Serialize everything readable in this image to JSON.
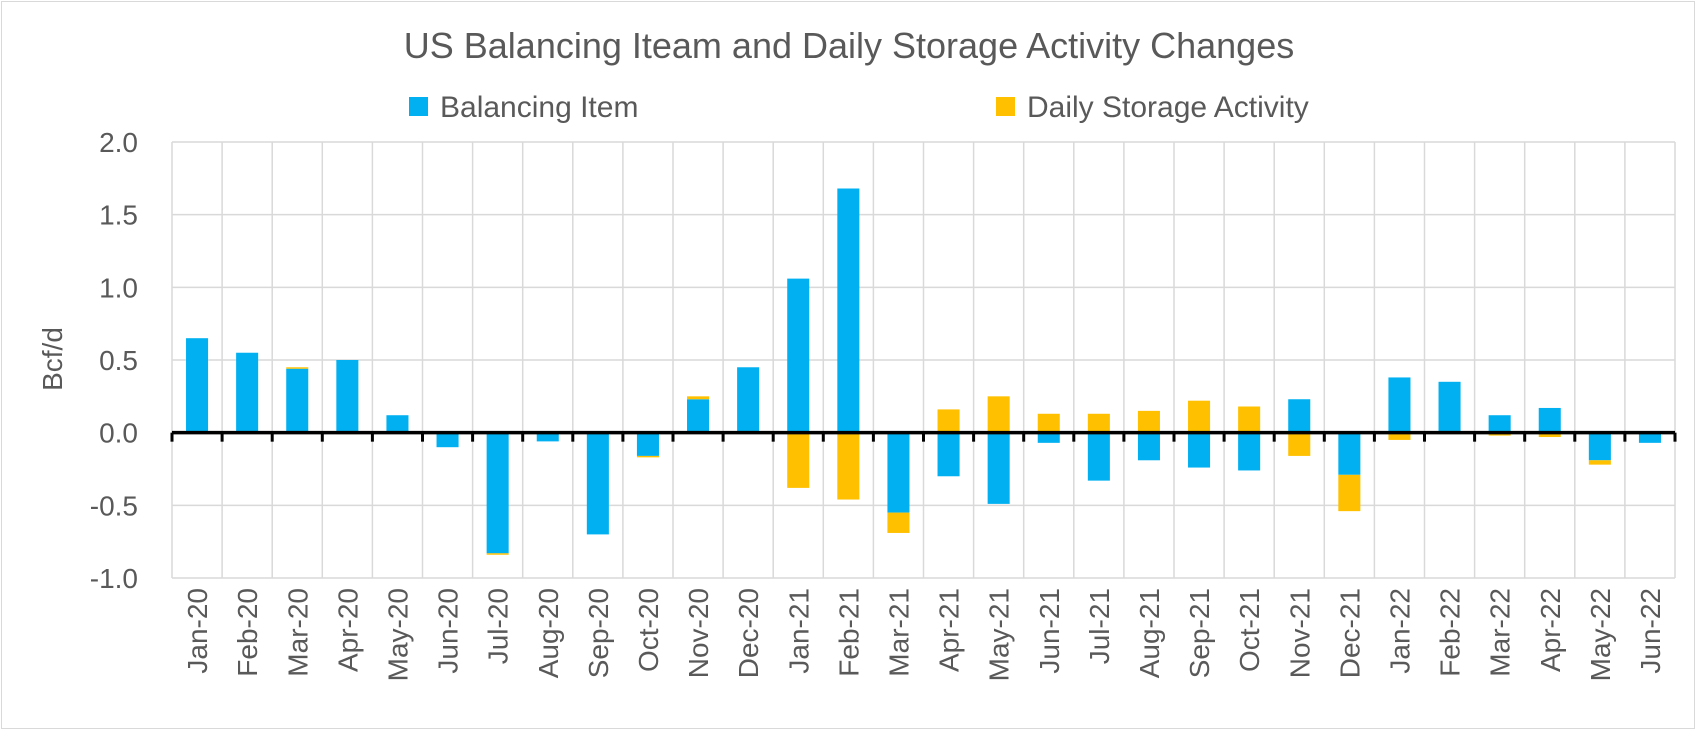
{
  "chart_data": {
    "type": "bar",
    "stacked": true,
    "title": "US Balancing Iteam and Daily Storage Activity Changes",
    "ylabel": "Bcf/d",
    "xlabel": "",
    "ylim": [
      -1.0,
      2.0
    ],
    "yticks": [
      "2.0",
      "1.5",
      "1.0",
      "0.5",
      "0.0",
      "-0.5",
      "-1.0"
    ],
    "ytick_values": [
      2.0,
      1.5,
      1.0,
      0.5,
      0.0,
      -0.5,
      -1.0
    ],
    "grid": true,
    "legend_position": "top",
    "categories": [
      "Jan-20",
      "Feb-20",
      "Mar-20",
      "Apr-20",
      "May-20",
      "Jun-20",
      "Jul-20",
      "Aug-20",
      "Sep-20",
      "Oct-20",
      "Nov-20",
      "Dec-20",
      "Jan-21",
      "Feb-21",
      "Mar-21",
      "Apr-21",
      "May-21",
      "Jun-21",
      "Jul-21",
      "Aug-21",
      "Sep-21",
      "Oct-21",
      "Nov-21",
      "Dec-21",
      "Jan-22",
      "Feb-22",
      "Mar-22",
      "Apr-22",
      "May-22",
      "Jun-22"
    ],
    "series": [
      {
        "name": "Balancing Item",
        "color": "#00b0f0",
        "values": [
          0.65,
          0.55,
          0.44,
          0.5,
          0.12,
          -0.1,
          -0.83,
          -0.06,
          -0.7,
          -0.16,
          0.23,
          0.45,
          1.06,
          1.68,
          -0.55,
          -0.3,
          -0.49,
          -0.07,
          -0.33,
          -0.19,
          -0.24,
          -0.26,
          0.23,
          -0.29,
          0.38,
          0.35,
          0.12,
          0.17,
          -0.19,
          -0.07
        ]
      },
      {
        "name": "Daily Storage Activity",
        "color": "#ffc000",
        "values": [
          0.0,
          0.0,
          0.01,
          -0.01,
          0.0,
          0.0,
          -0.01,
          0.0,
          0.0,
          -0.01,
          0.02,
          0.0,
          -0.38,
          -0.46,
          -0.14,
          0.16,
          0.25,
          0.13,
          0.13,
          0.15,
          0.22,
          0.18,
          -0.16,
          -0.25,
          -0.05,
          -0.01,
          -0.02,
          -0.03,
          -0.03,
          0.0
        ]
      }
    ]
  }
}
